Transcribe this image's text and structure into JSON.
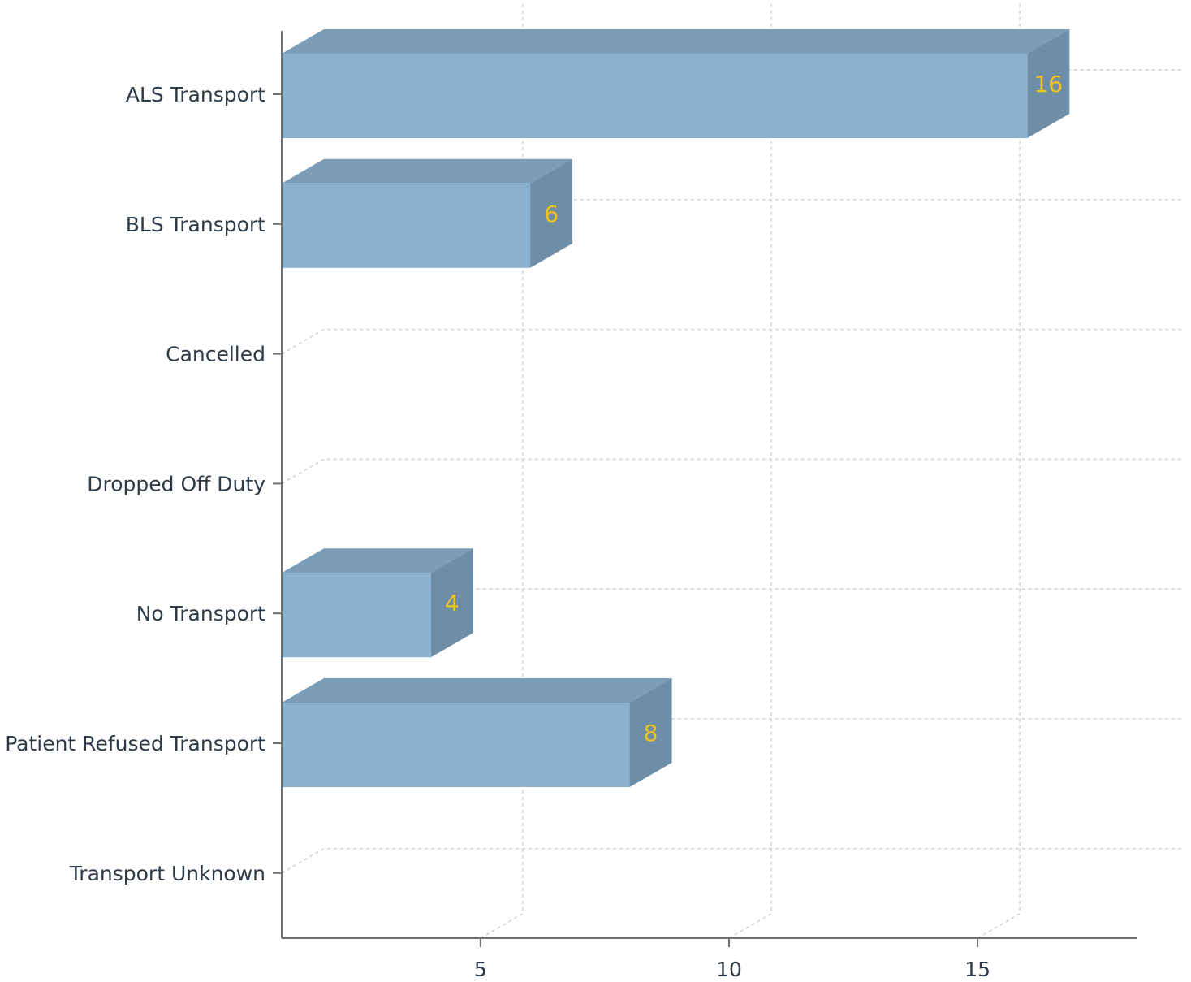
{
  "chart_data": {
    "type": "bar",
    "orientation": "horizontal",
    "three_d": true,
    "categories": [
      "ALS Transport",
      "BLS Transport",
      "Cancelled",
      "Dropped Off Duty",
      "No Transport",
      "Patient Refused Transport",
      "Transport Unknown"
    ],
    "values": [
      16,
      6,
      0,
      0,
      4,
      8,
      0
    ],
    "data_labels": [
      "16",
      "6",
      "",
      "",
      "4",
      "8",
      ""
    ],
    "x_ticks": [
      5,
      10,
      15
    ],
    "xlim": [
      1,
      18.2
    ],
    "grid": true,
    "legend": "none",
    "colors": {
      "bar_front": "#8bb1d1",
      "bar_top": "#7b9db8",
      "bar_side": "#6e8ea8",
      "value_label": "#f0c419",
      "axis": "#707070",
      "grid": "#cfcfcf",
      "text": "#2e3a48"
    }
  }
}
